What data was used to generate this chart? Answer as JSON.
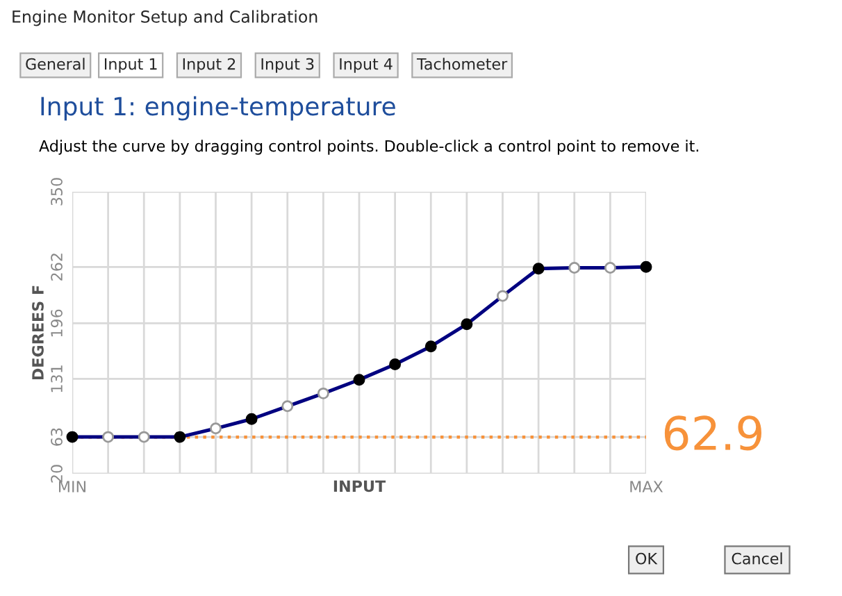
{
  "chart_data": {
    "type": "line",
    "title": "Input 1: engine-temperature",
    "subtitle": "Adjust the curve by dragging control points. Double-click a control point to remove it.",
    "xlabel": "INPUT",
    "ylabel": "DEGREES F",
    "annotations": [
      "Engine Monitor Setup and Calibration",
      "General",
      "Input 1",
      "Input 2",
      "Input 3",
      "Input 4",
      "Tachometer",
      "OK",
      "Cancel"
    ],
    "categories": [
      "MIN",
      null,
      null,
      null,
      null,
      null,
      null,
      null,
      null,
      null,
      null,
      null,
      null,
      null,
      null,
      null,
      "MAX"
    ],
    "series": [
      {
        "color": "#000080",
        "marker": "none",
        "values": [
          63,
          63,
          63,
          63,
          73,
          84,
          99,
          114,
          130,
          148,
          169,
          195,
          228,
          260,
          261,
          261,
          262
        ]
      },
      {
        "type": "scatter",
        "color": "#000000",
        "marker": "circle",
        "values": [
          63,
          null,
          null,
          63,
          null,
          84,
          null,
          null,
          130,
          148,
          169,
          195,
          null,
          260,
          null,
          null,
          262
        ]
      },
      {
        "type": "scatter",
        "color": "#999999",
        "marker": "circle",
        "values": [
          null,
          63,
          63,
          null,
          73,
          null,
          99,
          114,
          null,
          null,
          null,
          null,
          228,
          null,
          261,
          261,
          null
        ]
      }
    ],
    "ylim": [
      20,
      350
    ],
    "yticks": [
      20,
      63,
      131,
      196,
      262,
      350
    ],
    "ref_lines": [
      {
        "axis": "y",
        "value": 62.9,
        "label": "62.9",
        "color": "#f7923a",
        "line_style": "dotted"
      }
    ],
    "grid": true,
    "legend": false
  }
}
